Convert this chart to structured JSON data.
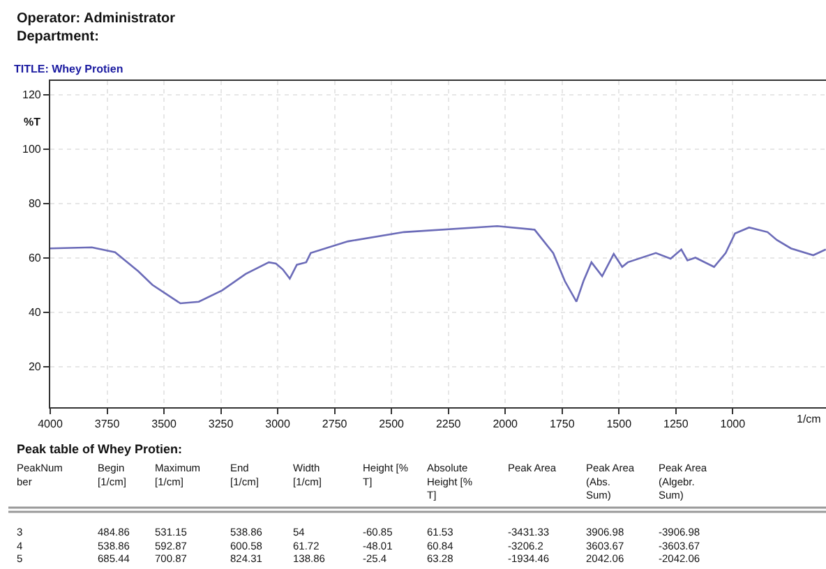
{
  "chart_data": {
    "type": "line",
    "title": "TITLE: Whey Protien",
    "xlabel": "1/cm",
    "ylabel": "%T",
    "annotations": [
      "Operator: Administrator\nDepartment:",
      "Peak table of Whey Protien:",
      "PeakNum\nber\tBegin\n[1/cm]\tMaximum\n[1/cm]\tEnd\n[1/cm]\tWidth\n[1/cm]\tHeight [%\nT]\tAbsolute\nHeight [%\nT]\tPeak Area\tPeak Area\n(Abs.\nSum)\tPeak Area\n(Algebr.\nSum)",
      "3\t484.86\t531.15\t538.86\t54\t-60.85\t61.53\t-3431.33\t3906.98\t-3906.98",
      "4\t538.86\t592.87\t600.58\t61.72\t-48.01\t60.84\t-3206.2\t3603.67\t-3603.67",
      "5\t685.44\t700.87\t824.31\t138.86\t-25.4\t63.28\t-1934.46\t2042.06\t-2042.06"
    ],
    "x": [
      4000,
      3817,
      3715,
      3613,
      3551,
      3428,
      3347,
      3244,
      3141,
      3039,
      3008,
      2978,
      2947,
      2916,
      2875,
      2855,
      2691,
      2445,
      2035,
      1871,
      1789,
      1738,
      1687,
      1656,
      1621,
      1574,
      1523,
      1486,
      1461,
      1338,
      1273,
      1226,
      1199,
      1164,
      1082,
      1031,
      990,
      928,
      847,
      806,
      744,
      646,
      591
    ],
    "series": [
      {
        "color": "#6b6bb8",
        "values": [
          63.4,
          63.8,
          62,
          55,
          50,
          43.2,
          43.8,
          48,
          54,
          58.3,
          57.8,
          55.7,
          52.3,
          57.4,
          58.3,
          61.7,
          66,
          69.4,
          71.6,
          70.3,
          61.7,
          51.4,
          43.8,
          51.4,
          58.3,
          53.2,
          61.4,
          56.6,
          58.3,
          61.7,
          59.6,
          63,
          59,
          60,
          56.6,
          61.7,
          68.9,
          71.1,
          69.4,
          66.5,
          63.4,
          60.9,
          63
        ]
      }
    ],
    "xlim": [
      4000,
      590
    ],
    "xticks": [
      4000,
      3750,
      3500,
      3250,
      3000,
      2750,
      2500,
      2250,
      2000,
      1750,
      1500,
      1250,
      1000
    ],
    "ylim": [
      5,
      125
    ],
    "yticks": [
      20,
      40,
      60,
      80,
      100,
      120
    ],
    "grid": true,
    "marker": "none",
    "line_style": "solid"
  }
}
